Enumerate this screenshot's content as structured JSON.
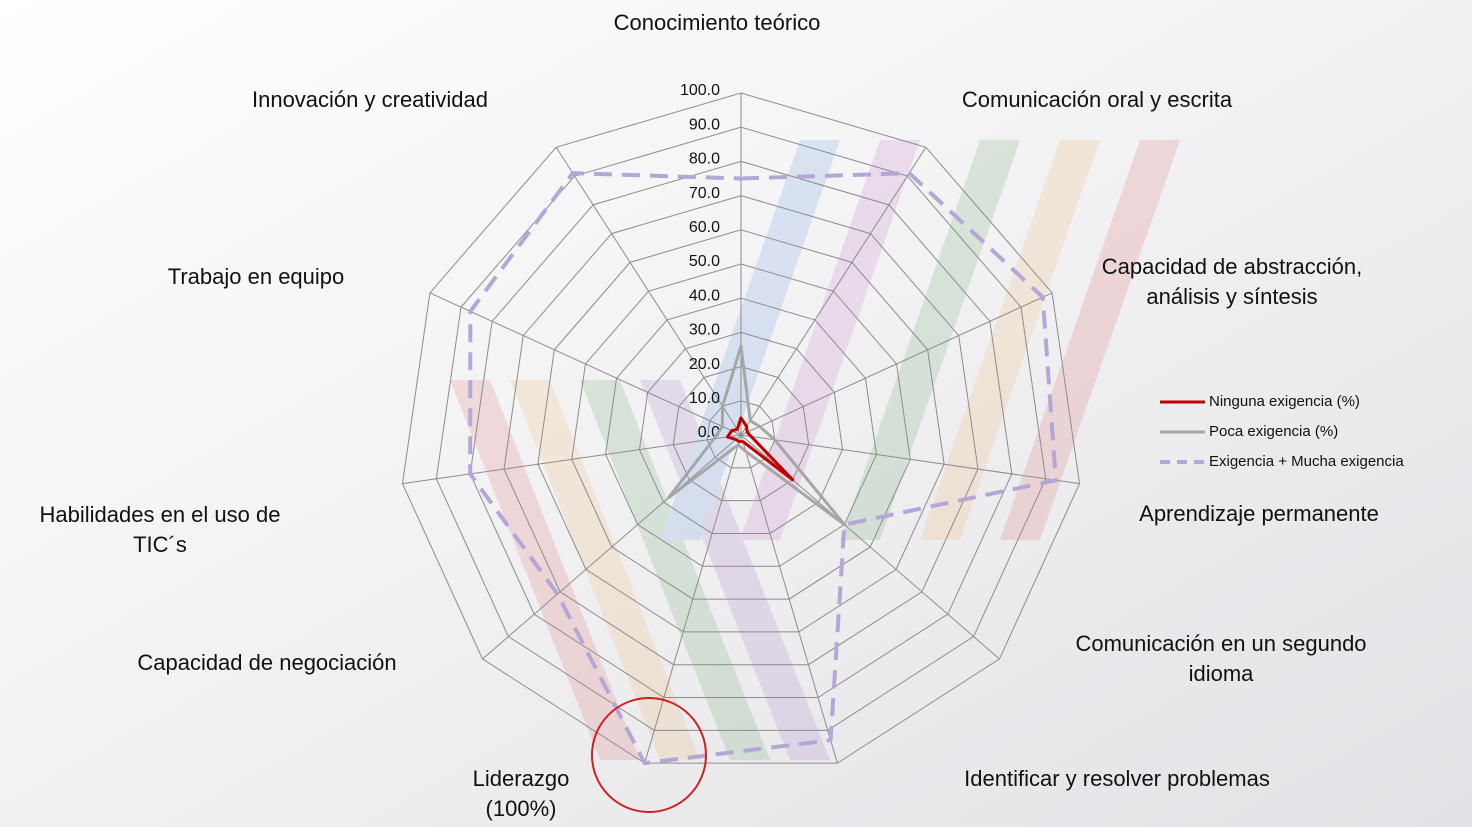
{
  "chart_data": {
    "type": "radar",
    "categories": [
      [
        "Conocimiento teórico"
      ],
      [
        "Comunicación oral y escrita"
      ],
      [
        "Capacidad de abstracción,",
        "análisis y síntesis"
      ],
      [
        "Aprendizaje permanente"
      ],
      [
        "Comunicación en un segundo",
        "idioma"
      ],
      [
        "Identificar y resolver problemas"
      ],
      [
        "Liderazgo",
        "(100%)"
      ],
      [
        "Capacidad de negociación"
      ],
      [
        "Habilidades en el uso de",
        "TIC´s"
      ],
      [
        "Trabajo en equipo"
      ],
      [
        "Innovación y creatividad"
      ]
    ],
    "rlim": [
      0,
      100
    ],
    "rticks": [
      {
        "value": 0,
        "label": "0.0"
      },
      {
        "value": 10,
        "label": "10.0"
      },
      {
        "value": 20,
        "label": "20.0"
      },
      {
        "value": 30,
        "label": "30.0"
      },
      {
        "value": 40,
        "label": "40.0"
      },
      {
        "value": 50,
        "label": "50.0"
      },
      {
        "value": 60,
        "label": "60.0"
      },
      {
        "value": 70,
        "label": "70.0"
      },
      {
        "value": 80,
        "label": "80.0"
      },
      {
        "value": 90,
        "label": "90.0"
      },
      {
        "value": 100,
        "label": "100.0"
      }
    ],
    "grid": true,
    "legend": "right",
    "series": [
      {
        "name": "Ninguna exigencia (%)",
        "color": "#c00000",
        "dash": false,
        "values": [
          5,
          3,
          2,
          3,
          20,
          2,
          2,
          2,
          4,
          3,
          2
        ]
      },
      {
        "name": "Poca exigencia (%)",
        "color": "#a6a6a6",
        "dash": false,
        "values": [
          26,
          5,
          6,
          10,
          40,
          5,
          3,
          28,
          8,
          6,
          10
        ]
      },
      {
        "name": "Exigencia + Mucha exigencia",
        "color": "#b4a7d6",
        "dash": true,
        "values": [
          75,
          91,
          97,
          93,
          40,
          93,
          100,
          71,
          80,
          87,
          91
        ]
      }
    ]
  }
}
